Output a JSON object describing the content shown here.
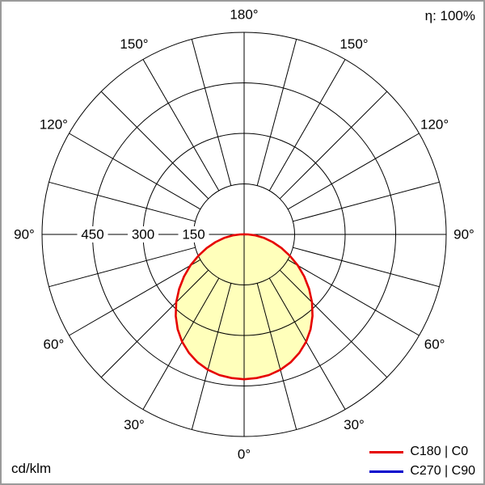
{
  "meta": {
    "efficiency_label": "η: 100%",
    "unit_label": "cd/klm"
  },
  "legend": {
    "items": [
      {
        "label": "C180 | C0",
        "color": "#e60000"
      },
      {
        "label": "C270 | C90",
        "color": "#0000cc"
      }
    ]
  },
  "chart_data": {
    "type": "polar",
    "unit": "cd/klm",
    "efficiency_label": "η: 100%",
    "angle_labels_deg": [
      0,
      30,
      60,
      90,
      120,
      150,
      180
    ],
    "radial_ticks": [
      150,
      300,
      450
    ],
    "radial_max": 600,
    "grid_spoke_step_deg": 15,
    "series": [
      {
        "name": "C180 | C0",
        "color": "#e60000",
        "fill": "#ffffbb",
        "symmetric": true,
        "gamma_deg": [
          0,
          5,
          10,
          15,
          20,
          25,
          30,
          35,
          40,
          45,
          50,
          55,
          60,
          65,
          70,
          75,
          80,
          85,
          90,
          95
        ],
        "values_cd_klm": [
          430,
          428,
          424,
          416,
          404,
          388,
          368,
          344,
          316,
          285,
          252,
          218,
          184,
          150,
          118,
          88,
          60,
          34,
          12,
          3
        ]
      },
      {
        "name": "C270 | C90",
        "color": "#0000cc",
        "visible_curve": false
      }
    ]
  }
}
